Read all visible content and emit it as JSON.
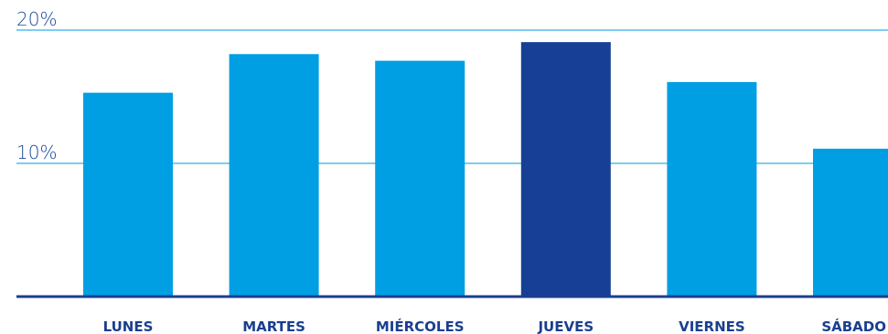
{
  "chart_data": {
    "type": "bar",
    "categories": [
      "LUNES",
      "MARTES",
      "MIÉRCOLES",
      "JUEVES",
      "VIERNES",
      "SÁBADO"
    ],
    "values": [
      15.3,
      18.2,
      17.7,
      19.1,
      16.1,
      11.1
    ],
    "highlight_index": 3,
    "ylim": [
      0,
      20
    ],
    "yticks": [
      {
        "value": 10,
        "label": "10%"
      },
      {
        "value": 20,
        "label": "20%"
      }
    ],
    "title": "",
    "xlabel": "",
    "ylabel": "",
    "grid": true,
    "colors": {
      "bar": "#009fe3",
      "highlight": "#173f96",
      "gridline": "#7dcdf2",
      "axis": "#1a3f8f"
    }
  }
}
